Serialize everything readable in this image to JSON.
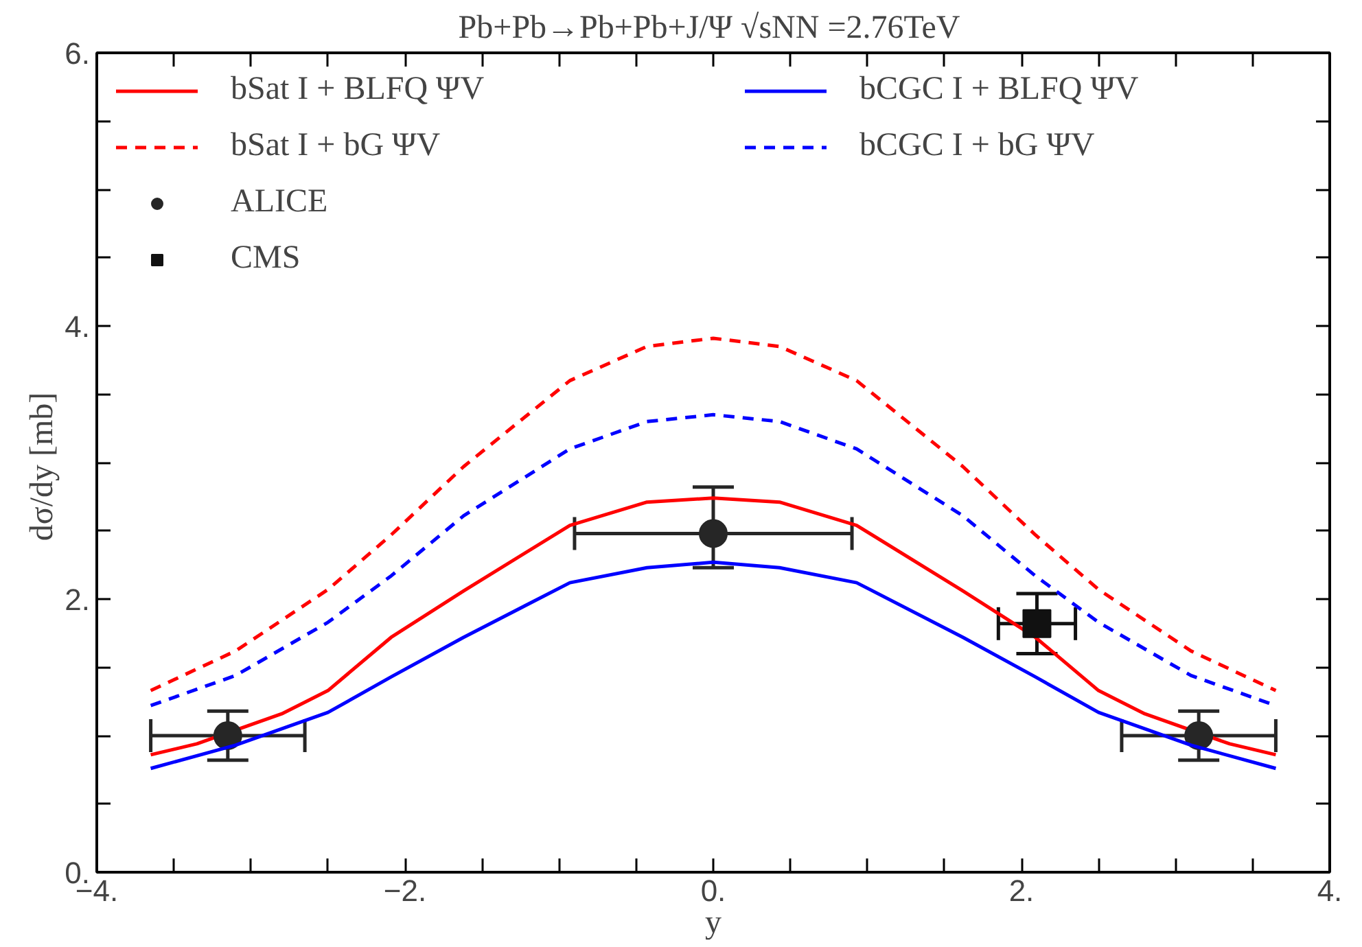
{
  "chart_data": {
    "type": "line",
    "title": "Pb+Pb→Pb+Pb+J/Ψ  √sNN =2.76TeV",
    "xlabel": "y",
    "ylabel": "dσ/dy  [mb]",
    "xlim": [
      -4,
      4
    ],
    "ylim": [
      0,
      6
    ],
    "xticks": [
      {
        "value": -4,
        "label": "−4."
      },
      {
        "value": -3.5,
        "label": null
      },
      {
        "value": -3,
        "label": null
      },
      {
        "value": -2.5,
        "label": null
      },
      {
        "value": -2,
        "label": "−2."
      },
      {
        "value": -1.5,
        "label": null
      },
      {
        "value": -1,
        "label": null
      },
      {
        "value": -0.5,
        "label": null
      },
      {
        "value": 0,
        "label": "0."
      },
      {
        "value": 0.5,
        "label": null
      },
      {
        "value": 1,
        "label": null
      },
      {
        "value": 1.5,
        "label": null
      },
      {
        "value": 2,
        "label": "2."
      },
      {
        "value": 2.5,
        "label": null
      },
      {
        "value": 3,
        "label": null
      },
      {
        "value": 3.5,
        "label": null
      },
      {
        "value": 4,
        "label": "4."
      }
    ],
    "yticks": [
      {
        "value": 0,
        "label": "0."
      },
      {
        "value": 0.5,
        "label": null
      },
      {
        "value": 1,
        "label": null
      },
      {
        "value": 1.5,
        "label": null
      },
      {
        "value": 2,
        "label": "2."
      },
      {
        "value": 2.5,
        "label": null
      },
      {
        "value": 3,
        "label": null
      },
      {
        "value": 3.5,
        "label": null
      },
      {
        "value": 4,
        "label": "4."
      },
      {
        "value": 4.5,
        "label": null
      },
      {
        "value": 5,
        "label": null
      },
      {
        "value": 5.5,
        "label": null
      },
      {
        "value": 6,
        "label": "6."
      }
    ],
    "grid": false,
    "legend": "top",
    "series": [
      {
        "name": "bSat I + BLFQ ΨV",
        "color": "#ff0000",
        "line_style": "solid",
        "x": [
          -3.65,
          -3.35,
          -2.8,
          -2.5,
          -2.09,
          -1.62,
          -0.93,
          -0.43,
          0,
          0.43,
          0.93,
          1.62,
          2.09,
          2.5,
          2.8,
          3.35,
          3.65
        ],
        "values": [
          0.86,
          0.94,
          1.16,
          1.33,
          1.72,
          2.06,
          2.54,
          2.71,
          2.74,
          2.71,
          2.54,
          2.06,
          1.72,
          1.33,
          1.16,
          0.94,
          0.86
        ]
      },
      {
        "name": "bSat I + bG ΨV",
        "color": "#ff0000",
        "line_style": "dashed",
        "x": [
          -3.65,
          -3.1,
          -2.5,
          -2.09,
          -1.62,
          -0.93,
          -0.43,
          0,
          0.43,
          0.93,
          1.62,
          2.09,
          2.5,
          3.1,
          3.65
        ],
        "values": [
          1.33,
          1.62,
          2.07,
          2.47,
          2.97,
          3.6,
          3.85,
          3.91,
          3.85,
          3.6,
          2.97,
          2.47,
          2.07,
          1.62,
          1.33
        ]
      },
      {
        "name": "ALICE",
        "type": "scatter",
        "marker": "circle",
        "color": "#262626",
        "x": [
          -3.15,
          0,
          3.15
        ],
        "values": [
          1.0,
          2.48,
          1.0
        ],
        "errors": [
          [
            0.82,
            1.18
          ],
          [
            2.23,
            2.82
          ],
          [
            0.82,
            1.18
          ]
        ],
        "xerrors": [
          0.5,
          0.9,
          0.5
        ]
      },
      {
        "name": "CMS",
        "type": "scatter",
        "marker": "square",
        "color": "#111111",
        "x": [
          2.1
        ],
        "values": [
          1.82
        ],
        "errors": [
          [
            1.6,
            2.04
          ]
        ],
        "xerrors": [
          0.25
        ]
      },
      {
        "name": "bCGC I + BLFQ ΨV",
        "color": "#0000ff",
        "line_style": "solid",
        "x": [
          -3.65,
          -3.1,
          -2.5,
          -2.09,
          -1.62,
          -0.93,
          -0.43,
          0,
          0.43,
          0.93,
          1.62,
          2.09,
          2.5,
          3.1,
          3.65
        ],
        "values": [
          0.76,
          0.93,
          1.17,
          1.43,
          1.72,
          2.12,
          2.23,
          2.27,
          2.23,
          2.12,
          1.72,
          1.43,
          1.17,
          0.93,
          0.76
        ]
      },
      {
        "name": "bCGC I + bG ΨV",
        "color": "#0000ff",
        "line_style": "dashed",
        "x": [
          -3.65,
          -3.1,
          -2.5,
          -2.09,
          -1.62,
          -0.93,
          -0.43,
          0,
          0.43,
          0.93,
          1.62,
          2.09,
          2.5,
          3.1,
          3.65
        ],
        "values": [
          1.22,
          1.44,
          1.83,
          2.17,
          2.61,
          3.1,
          3.3,
          3.35,
          3.3,
          3.1,
          2.61,
          2.17,
          1.83,
          1.44,
          1.22
        ]
      }
    ]
  }
}
